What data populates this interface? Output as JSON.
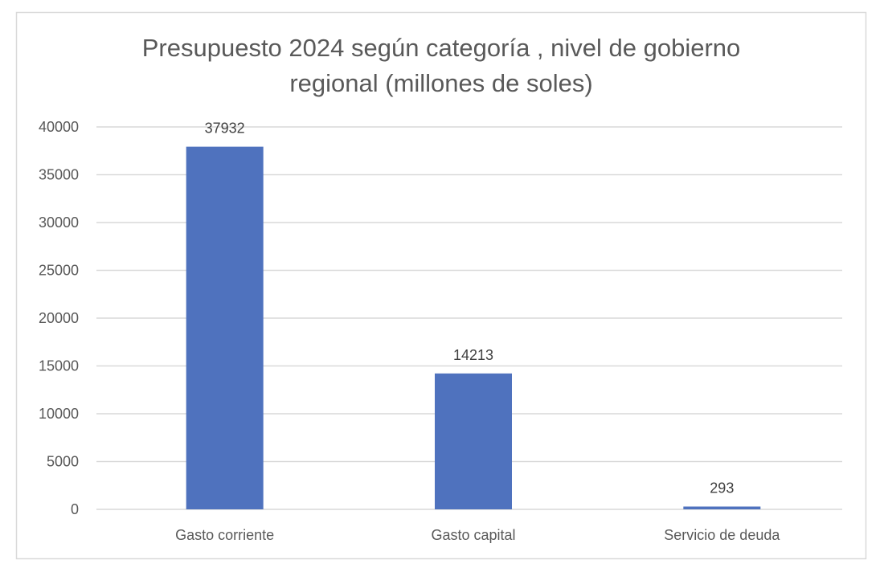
{
  "chart_data": {
    "type": "bar",
    "title_lines": [
      "Presupuesto 2024 según categoría , nivel de gobierno",
      "regional (millones de soles)"
    ],
    "categories": [
      "Gasto corriente",
      "Gasto capital",
      "Servicio de deuda"
    ],
    "values": [
      37932,
      14213,
      293
    ],
    "data_labels": [
      "37932",
      "14213",
      "293"
    ],
    "ylim": [
      0,
      40000
    ],
    "yticks": [
      "0",
      "5000",
      "10000",
      "15000",
      "20000",
      "25000",
      "30000",
      "35000",
      "40000"
    ],
    "grid": true,
    "legend": "none",
    "colors": {
      "bar": "#4f72be",
      "grid": "#d9d9d9",
      "border": "#d9d9d9"
    }
  }
}
